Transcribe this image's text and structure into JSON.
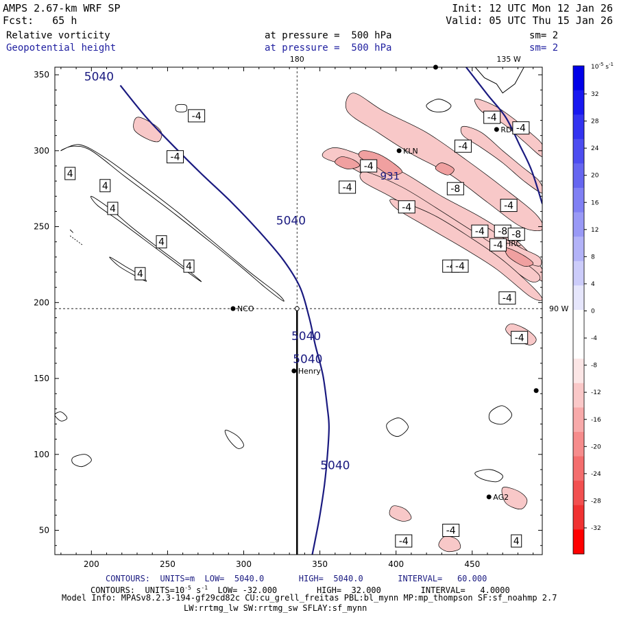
{
  "header": {
    "model": "AMPS 2.67-km WRF SP",
    "fcst_label": "Fcst:",
    "fcst_value": "65 h",
    "init": "Init: 12 UTC Mon 12 Jan 26",
    "valid": "Valid: 05 UTC Thu 15 Jan 26",
    "field1": "Relative vorticity",
    "field1_pressure": "at pressure =  500 hPa",
    "field1_sm": "sm= 2",
    "field2": "Geopotential height",
    "field2_pressure": "at pressure =  500 hPa",
    "field2_sm": "sm= 2"
  },
  "footer": {
    "contours_height": "CONTOURS:  UNITS=m  LOW=  5040.0       HIGH=  5040.0       INTERVAL=   60.000",
    "contours_vort_a": "CONTOURS:  UNITS=10",
    "contours_vort_exp": "-5",
    "contours_vort_b": " s",
    "contours_vort_exp2": "-1",
    "contours_vort_c": "  LOW= -32.000        HIGH=  32.000        INTERVAL=   4.0000",
    "model_info": "Model Info: MPASv8.2.3-194-gf29cd82c CU:cu_grell_freitas PBL:bl_mynn MP:mp_thompson SF:sf_noahmp 2.7",
    "model_info2": "LW:rrtmg_lw SW:rrtmg_sw SFLAY:sf_mynn"
  },
  "colors": {
    "height_contour": "#1a1a80",
    "vort_contour": "#000000",
    "neg_fill": "#f8c8c8",
    "neg_fill_dark": "#f0a0a0"
  },
  "chart_data": {
    "type": "contour-map",
    "xlim": [
      176,
      496
    ],
    "ylim": [
      34,
      355
    ],
    "x_ticks": [
      200,
      250,
      300,
      350,
      400,
      450
    ],
    "y_ticks": [
      50,
      100,
      150,
      200,
      250,
      300,
      350
    ],
    "meridian_labels": [
      {
        "text": "180",
        "x": 335
      },
      {
        "text": "135 W",
        "x": 474
      }
    ],
    "parallel_label": {
      "text": "90 W",
      "y": 196
    },
    "stations": [
      {
        "name": "NCO",
        "x": 293,
        "y": 196
      },
      {
        "name": "Henry",
        "x": 333,
        "y": 155
      },
      {
        "name": "KLN",
        "x": 402,
        "y": 300
      },
      {
        "name": "RDG",
        "x": 466,
        "y": 314
      },
      {
        "name": "HRC",
        "x": 469,
        "y": 239
      },
      {
        "name": "AG2",
        "x": 461,
        "y": 72
      },
      {
        "name": "",
        "x": 426,
        "y": 355
      },
      {
        "name": "",
        "x": 492,
        "y": 142
      }
    ],
    "height_contours": [
      {
        "value": 5040,
        "points": [
          [
            219,
            343
          ],
          [
            236,
            322
          ],
          [
            254,
            303
          ],
          [
            272,
            285
          ],
          [
            292,
            266
          ],
          [
            310,
            247
          ],
          [
            326,
            228
          ],
          [
            337,
            210
          ],
          [
            343,
            190
          ],
          [
            347,
            172
          ],
          [
            352,
            152
          ],
          [
            355,
            130
          ],
          [
            356,
            118
          ],
          [
            355,
            100
          ],
          [
            353,
            80
          ],
          [
            350,
            60
          ],
          [
            347,
            44
          ],
          [
            345,
            34
          ]
        ]
      },
      {
        "value": 5040,
        "points": [
          [
            446,
            355
          ],
          [
            460,
            337
          ],
          [
            472,
            322
          ],
          [
            481,
            304
          ],
          [
            489,
            287
          ],
          [
            496,
            265
          ]
        ]
      }
    ],
    "height_labels": [
      {
        "text": "5040",
        "x": 205,
        "y": 349
      },
      {
        "text": "5040",
        "x": 331,
        "y": 254
      },
      {
        "text": "5040",
        "x": 341,
        "y": 178
      },
      {
        "text": "5040",
        "x": 342,
        "y": 163
      },
      {
        "text": "5040",
        "x": 360,
        "y": 93
      }
    ],
    "vorticity_labels": [
      {
        "value": 4,
        "x": 186,
        "y": 285
      },
      {
        "value": 4,
        "x": 209,
        "y": 277
      },
      {
        "value": 4,
        "x": 214,
        "y": 262
      },
      {
        "value": 4,
        "x": 246,
        "y": 240
      },
      {
        "value": 4,
        "x": 264,
        "y": 224
      },
      {
        "value": 4,
        "x": 232,
        "y": 219
      },
      {
        "value": -4,
        "x": 269,
        "y": 323
      },
      {
        "value": -4,
        "x": 255,
        "y": 296
      },
      {
        "value": -4,
        "x": 444,
        "y": 303
      },
      {
        "value": -4,
        "x": 382,
        "y": 290
      },
      {
        "value": -4,
        "x": 368,
        "y": 276
      },
      {
        "value": -4,
        "x": 407,
        "y": 263
      },
      {
        "value": -4,
        "x": 463,
        "y": 322
      },
      {
        "value": -4,
        "x": 482,
        "y": 315
      },
      {
        "value": -8,
        "x": 439,
        "y": 275
      },
      {
        "value": -4,
        "x": 474,
        "y": 264
      },
      {
        "value": -4,
        "x": 455,
        "y": 247
      },
      {
        "value": -8,
        "x": 470,
        "y": 247
      },
      {
        "value": -8,
        "x": 479,
        "y": 245
      },
      {
        "value": -4,
        "x": 467,
        "y": 238
      },
      {
        "value": -4,
        "x": 436,
        "y": 224
      },
      {
        "value": -4,
        "x": 442,
        "y": 224
      },
      {
        "value": -4,
        "x": 473,
        "y": 203
      },
      {
        "value": -4,
        "x": 481,
        "y": 177
      },
      {
        "value": -4,
        "x": 436,
        "y": 50
      },
      {
        "value": -4,
        "x": 405,
        "y": 43
      },
      {
        "value": 4,
        "x": 479,
        "y": 43
      }
    ],
    "colorbar": {
      "unit": "10",
      "unit_exp": "-5",
      "unit_b": " s",
      "unit_exp2": "-1",
      "ticks": [
        32,
        28,
        24,
        20,
        16,
        12,
        8,
        4,
        0,
        -4,
        -8,
        -12,
        -16,
        -20,
        -24,
        -28,
        -32
      ],
      "colors": [
        "#0000e8",
        "#1818f0",
        "#3333f0",
        "#4d4df0",
        "#6666f0",
        "#8080f4",
        "#9999f6",
        "#b3b3f8",
        "#ccccfa",
        "#e6e6fc",
        "#ffffff",
        "#ffffff",
        "#fce6e6",
        "#fac8c8",
        "#f8aaaa",
        "#f68c8c",
        "#f46e6e",
        "#f25050",
        "#f03232",
        "#ff0000"
      ]
    },
    "low_label": {
      "text": "931",
      "x": 396,
      "y": 281
    }
  }
}
